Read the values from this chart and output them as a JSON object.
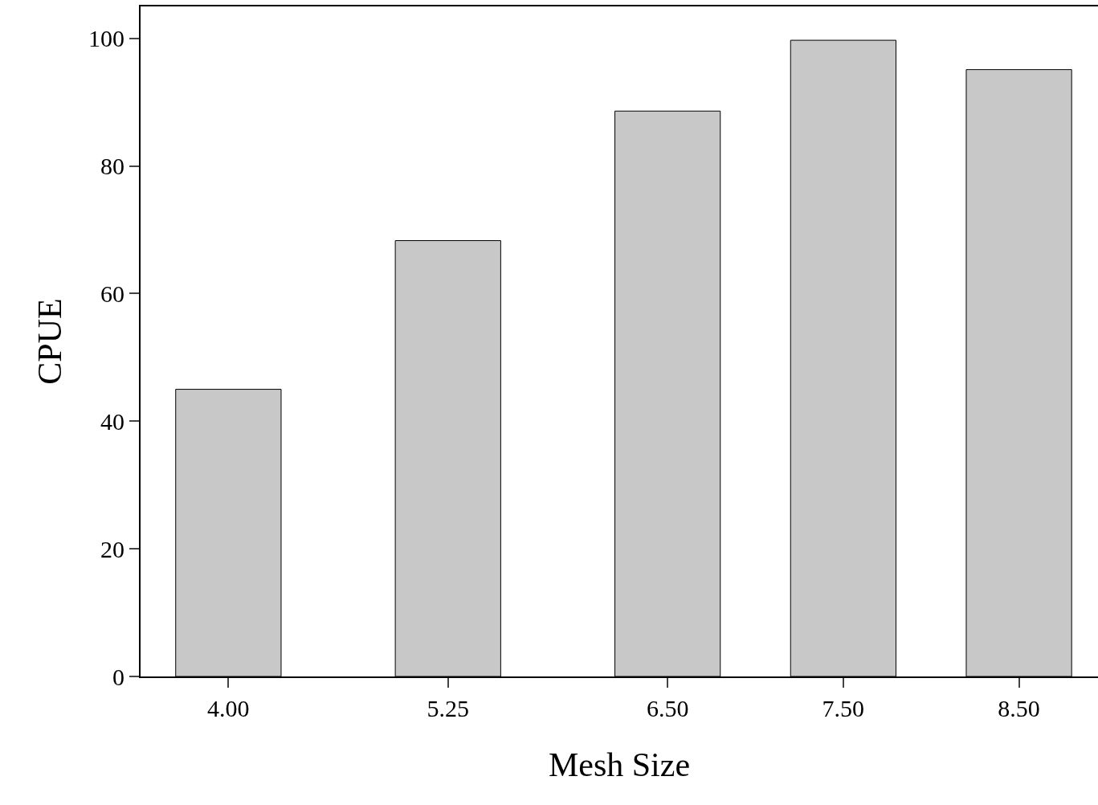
{
  "chart_data": {
    "type": "bar",
    "xlabel": "Mesh Size",
    "ylabel": "CPUE",
    "x": [
      4.0,
      5.25,
      6.5,
      7.5,
      8.5
    ],
    "values": [
      45.0,
      68.3,
      88.6,
      99.7,
      95.1
    ],
    "color": "#c8c8c8",
    "xlim": [
      3.5,
      8.95
    ],
    "xticks": [
      {
        "value": 4.0,
        "label": "4.00"
      },
      {
        "value": 5.25,
        "label": "5.25"
      },
      {
        "value": 6.5,
        "label": "6.50"
      },
      {
        "value": 7.5,
        "label": "7.50"
      },
      {
        "value": 8.5,
        "label": "8.50"
      }
    ],
    "ylim": [
      0,
      105
    ],
    "yticks": [
      0,
      20,
      40,
      60,
      80,
      100
    ],
    "legend": false
  }
}
